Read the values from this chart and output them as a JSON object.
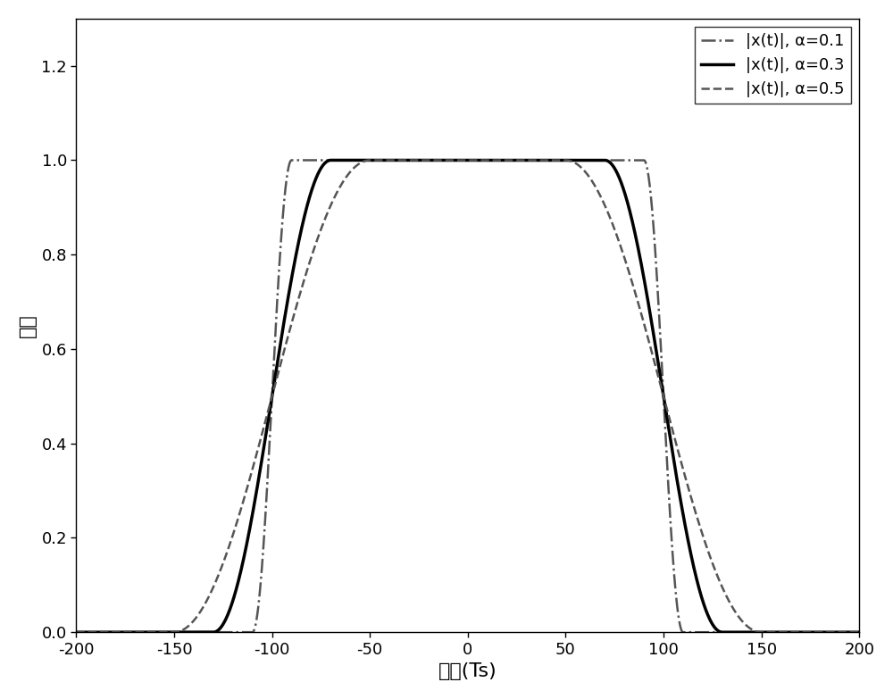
{
  "xlim": [
    -200,
    200
  ],
  "ylim": [
    0,
    1.3
  ],
  "xlabel": "时间(Ts)",
  "ylabel": "幅度",
  "xticks": [
    -200,
    -150,
    -100,
    -50,
    0,
    50,
    100,
    150,
    200
  ],
  "yticks": [
    0,
    0.2,
    0.4,
    0.6,
    0.8,
    1.0,
    1.2
  ],
  "alphas": [
    0.1,
    0.3,
    0.5
  ],
  "line_color": "#555555",
  "line_color_solid": "#000000",
  "legend_labels": [
    "|x(t)|, α=0.1",
    "|x(t)|, α=0.3",
    "|x(t)|, α=0.5"
  ],
  "linestyles": [
    "dashdot",
    "solid",
    "dashed"
  ],
  "linewidths": [
    1.8,
    2.5,
    1.8
  ],
  "T": 200.0,
  "num_points": 4000,
  "t_range": [
    -200,
    200
  ],
  "figsize": [
    10.0,
    7.83
  ],
  "dpi": 100,
  "background_color": "#ffffff",
  "grid": false
}
